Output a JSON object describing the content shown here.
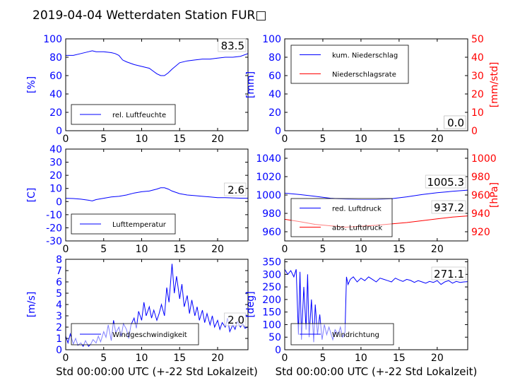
{
  "figure": {
    "title": "2019-04-04 Wetterdaten Station FUR□"
  },
  "chart_data": [
    {
      "id": "humidity",
      "type": "line",
      "xlim": [
        0,
        24
      ],
      "xticks": [
        0,
        5,
        10,
        15,
        20
      ],
      "ylim": [
        0,
        100
      ],
      "yticks": [
        0,
        20,
        40,
        60,
        80,
        100
      ],
      "ylabel": "[%]",
      "ylabel_color": "#0000ff",
      "grid": false,
      "legend_position": "lower-left",
      "annotations": [
        {
          "text": "83.5",
          "color": "#000000"
        }
      ],
      "series": [
        {
          "name": "rel. Luftfeuchte",
          "color": "#0000ff",
          "axis": "left",
          "x": [
            0,
            1,
            2,
            3,
            3.5,
            4,
            5,
            6,
            6.5,
            7,
            7.5,
            8,
            9,
            10,
            11,
            11.5,
            12,
            12.5,
            13,
            13.5,
            14,
            15,
            16,
            17,
            18,
            19,
            20,
            21,
            22,
            23,
            24
          ],
          "y": [
            82,
            82,
            84,
            86,
            87,
            86,
            86,
            85,
            84,
            82,
            77,
            75,
            72,
            70,
            68,
            65,
            62,
            60,
            60,
            63,
            67,
            74,
            76,
            77,
            78,
            78,
            79,
            80,
            80,
            81,
            84
          ]
        }
      ]
    },
    {
      "id": "precip",
      "type": "line",
      "xlim": [
        0,
        24
      ],
      "xticks": [
        0,
        5,
        10,
        15,
        20
      ],
      "ylim": [
        0,
        100
      ],
      "yticks": [
        0,
        20,
        40,
        60,
        80,
        100
      ],
      "ylabel": "[mm]",
      "ylabel_color": "#0000ff",
      "ylim2": [
        0,
        50
      ],
      "yticks2": [
        0,
        10,
        20,
        30,
        40,
        50
      ],
      "ylabel2": "[mm/std]",
      "ylabel2_color": "#ff0000",
      "grid": false,
      "legend_position": "top-left",
      "annotations": [
        {
          "text": "0.0",
          "color": "#000000"
        },
        {
          "text": "0.0",
          "color": "#000000"
        }
      ],
      "series": [
        {
          "name": "kum. Niederschlag",
          "color": "#0000ff",
          "axis": "left",
          "x": [
            0,
            24
          ],
          "y": [
            0,
            0
          ]
        },
        {
          "name": "Niederschlagsrate",
          "color": "#ff0000",
          "axis": "right",
          "x": [
            0,
            24
          ],
          "y": [
            0,
            0
          ]
        }
      ]
    },
    {
      "id": "temperature",
      "type": "line",
      "xlim": [
        0,
        24
      ],
      "xticks": [
        0,
        5,
        10,
        15,
        20
      ],
      "ylim": [
        -30,
        40
      ],
      "yticks": [
        -30,
        -20,
        -10,
        0,
        10,
        20,
        30,
        40
      ],
      "ylabel": "[C]",
      "ylabel_color": "#0000ff",
      "grid": false,
      "legend_position": "lower-left",
      "annotations": [
        {
          "text": "2.6",
          "color": "#000000"
        }
      ],
      "series": [
        {
          "name": "Lufttemperatur",
          "color": "#0000ff",
          "axis": "left",
          "x": [
            0,
            1,
            2,
            3,
            3.5,
            4,
            5,
            6,
            7,
            8,
            9,
            10,
            11,
            12,
            12.5,
            13,
            13.5,
            14,
            15,
            16,
            17,
            18,
            19,
            20,
            21,
            22,
            23,
            24
          ],
          "y": [
            2.5,
            2.3,
            1.8,
            1.0,
            0.5,
            1.5,
            2.5,
            3.5,
            4,
            5,
            6.5,
            7.5,
            8,
            9.5,
            10.5,
            10.5,
            9.5,
            8,
            6,
            5,
            4.5,
            4,
            3.5,
            3,
            3,
            2.8,
            2.6,
            2.6
          ]
        }
      ]
    },
    {
      "id": "pressure",
      "type": "line",
      "xlim": [
        0,
        24
      ],
      "xticks": [
        0,
        5,
        10,
        15,
        20
      ],
      "ylim": [
        950,
        1050
      ],
      "yticks": [
        960,
        980,
        1000,
        1020,
        1040
      ],
      "ylabel": "",
      "ylabel_color": "#0000ff",
      "ylim2": [
        910,
        1010
      ],
      "yticks2": [
        920,
        940,
        960,
        980,
        1000
      ],
      "ylabel2": "[hPa]",
      "ylabel2_color": "#ff0000",
      "grid": false,
      "legend_position": "lower-left",
      "annotations": [
        {
          "text": "1005.3",
          "color": "#000000"
        },
        {
          "text": "937.2",
          "color": "#000000"
        }
      ],
      "series": [
        {
          "name": "red. Luftdruck",
          "color": "#0000ff",
          "axis": "left",
          "x": [
            0,
            2,
            4,
            6,
            8,
            10,
            12,
            14,
            16,
            18,
            20,
            22,
            24
          ],
          "y": [
            1002,
            1000.5,
            998.5,
            996.5,
            995.5,
            995,
            995,
            996,
            998,
            1000.5,
            1002.5,
            1004,
            1005.3
          ]
        },
        {
          "name": "abs. Luftdruck",
          "color": "#ff0000",
          "axis": "right",
          "x": [
            0,
            2,
            4,
            6,
            8,
            10,
            12,
            14,
            16,
            18,
            20,
            22,
            24
          ],
          "y": [
            933.5,
            931,
            928,
            926.5,
            925,
            926,
            927,
            928.5,
            930,
            932,
            934,
            936,
            937.2
          ]
        }
      ]
    },
    {
      "id": "wind_speed",
      "type": "line",
      "xlim": [
        0,
        24
      ],
      "xticks": [
        0,
        5,
        10,
        15,
        20
      ],
      "ylim": [
        0,
        8
      ],
      "yticks": [
        0,
        1,
        2,
        3,
        4,
        5,
        6,
        7,
        8
      ],
      "ylabel": "[m/s]",
      "ylabel_color": "#0000ff",
      "xlabel": "Std 00:00:00 UTC (+-22 Std Lokalzeit)",
      "grid": false,
      "legend_position": "lower-left",
      "annotations": [
        {
          "text": "2.0",
          "color": "#000000"
        }
      ],
      "series": [
        {
          "name": "Windgeschwindigkeit",
          "color": "#0000ff",
          "axis": "left",
          "x": [
            0,
            0.3,
            0.6,
            1,
            1.3,
            1.6,
            2,
            2.3,
            2.6,
            3,
            3.3,
            3.6,
            4,
            4.3,
            4.6,
            5,
            5.3,
            5.6,
            6,
            6.3,
            6.6,
            7,
            7.3,
            7.6,
            8,
            8.3,
            8.6,
            9,
            9.3,
            9.6,
            10,
            10.3,
            10.6,
            11,
            11.3,
            11.6,
            12,
            12.3,
            12.6,
            13,
            13.3,
            13.6,
            14,
            14.3,
            14.6,
            15,
            15.3,
            15.6,
            16,
            16.3,
            16.6,
            17,
            17.3,
            17.6,
            18,
            18.3,
            18.6,
            19,
            19.3,
            19.6,
            20,
            20.3,
            20.6,
            21,
            21.3,
            21.6,
            22,
            22.3,
            22.6,
            23,
            23.3,
            23.6,
            24
          ],
          "y": [
            1.2,
            0.6,
            1.4,
            0.5,
            1.0,
            0.4,
            0.6,
            0.3,
            0.8,
            0.3,
            0.5,
            0.9,
            0.6,
            1.2,
            0.7,
            1.6,
            1.1,
            2.2,
            0.8,
            2.6,
            1.5,
            2.0,
            1.2,
            2.3,
            1.8,
            1.0,
            2.2,
            2.8,
            1.9,
            3.4,
            2.6,
            4.2,
            3.0,
            3.8,
            2.8,
            3.5,
            2.6,
            3.2,
            4.0,
            3.0,
            5.5,
            4.2,
            7.6,
            5.0,
            6.5,
            4.5,
            5.8,
            3.8,
            4.8,
            3.2,
            4.4,
            3.0,
            3.8,
            2.6,
            3.5,
            2.4,
            3.2,
            2.2,
            3.0,
            2.0,
            2.6,
            1.8,
            2.4,
            2.0,
            2.8,
            1.6,
            2.2,
            1.8,
            2.5,
            2.0,
            2.3,
            1.9,
            2.0
          ]
        }
      ]
    },
    {
      "id": "wind_direction",
      "type": "line",
      "xlim": [
        0,
        24
      ],
      "xticks": [
        0,
        5,
        10,
        15,
        20
      ],
      "ylim": [
        0,
        360
      ],
      "yticks": [
        0,
        50,
        100,
        150,
        200,
        250,
        300,
        350
      ],
      "ylabel": "[deg]",
      "ylabel_color": "#0000ff",
      "xlabel": "Std 00:00:00 UTC (+-22 Std Lokalzeit)",
      "grid": false,
      "legend_position": "lower-left",
      "annotations": [
        {
          "text": "271.1",
          "color": "#000000"
        }
      ],
      "series": [
        {
          "name": "Windrichtung",
          "color": "#0000ff",
          "axis": "left",
          "x": [
            0,
            0.4,
            0.8,
            1.2,
            1.5,
            1.8,
            2.0,
            2.2,
            2.5,
            2.8,
            3.0,
            3.2,
            3.5,
            3.8,
            4.0,
            4.3,
            4.6,
            4.9,
            5.2,
            5.5,
            5.8,
            6.0,
            6.3,
            6.6,
            7.0,
            7.3,
            7.6,
            7.9,
            8.1,
            8.3,
            8.6,
            9,
            9.5,
            10,
            10.5,
            11,
            11.5,
            12,
            12.5,
            13,
            13.5,
            14,
            14.5,
            15,
            15.5,
            16,
            16.5,
            17,
            17.5,
            18,
            18.5,
            19,
            19.5,
            20,
            20.5,
            21,
            21.5,
            22,
            22.5,
            23,
            23.5,
            24
          ],
          "y": [
            320,
            300,
            315,
            290,
            320,
            60,
            310,
            40,
            250,
            80,
            300,
            50,
            200,
            30,
            180,
            60,
            140,
            40,
            100,
            60,
            90,
            70,
            40,
            80,
            60,
            90,
            50,
            70,
            290,
            260,
            280,
            290,
            270,
            285,
            275,
            290,
            280,
            270,
            285,
            280,
            275,
            270,
            285,
            278,
            272,
            280,
            276,
            268,
            275,
            270,
            265,
            272,
            268,
            275,
            260,
            270,
            275,
            265,
            272,
            268,
            270,
            271
          ]
        }
      ]
    }
  ]
}
